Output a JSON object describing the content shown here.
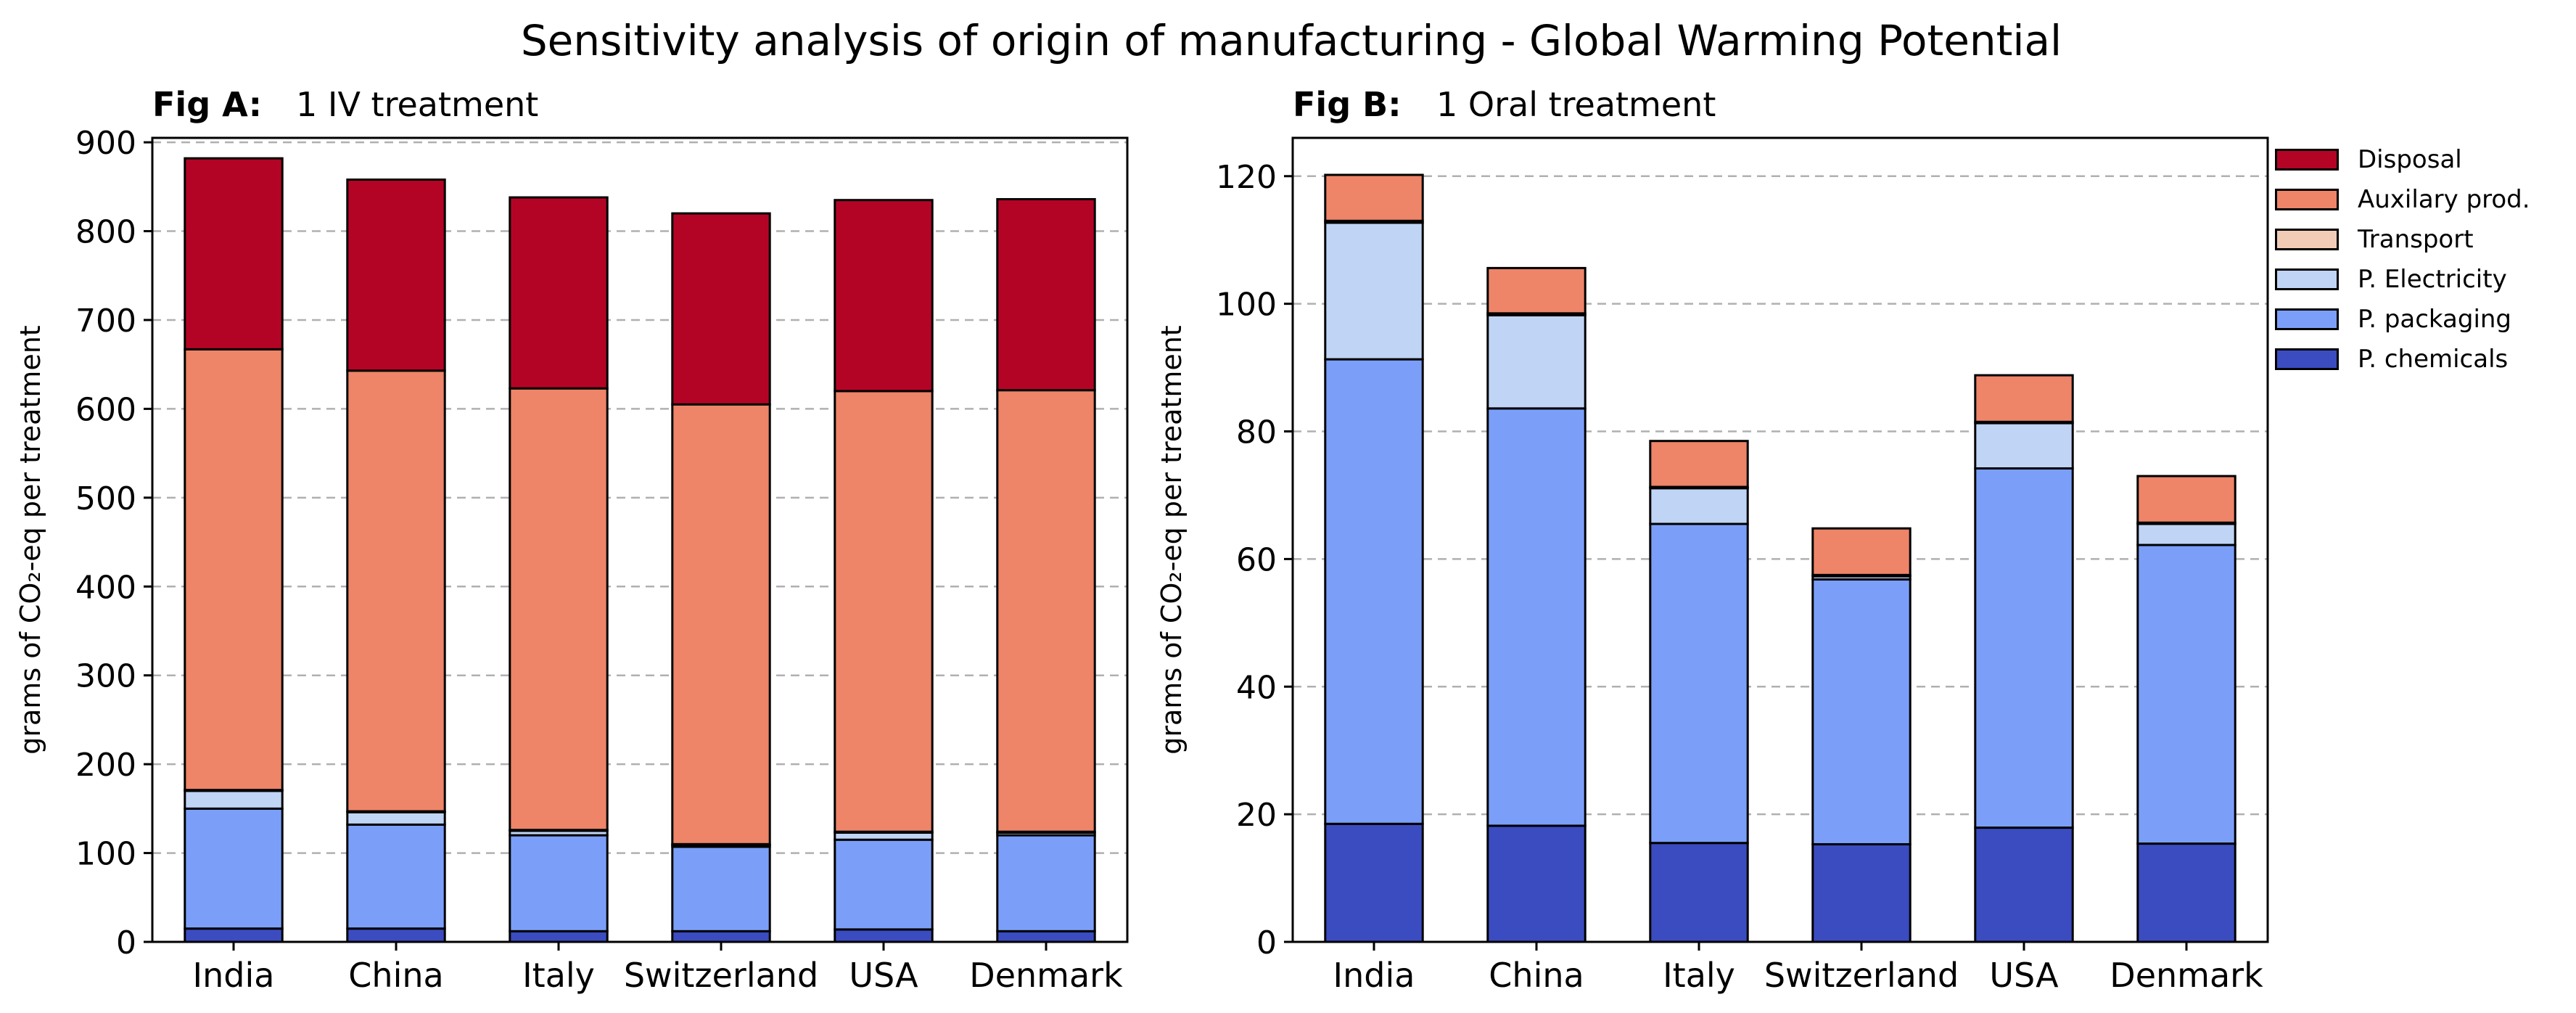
{
  "chart_data": {
    "title": "Sensitivity analysis of origin of manufacturing - Global Warming Potential",
    "type": "bar",
    "stacked": true,
    "categories": [
      "India",
      "China",
      "Italy",
      "Switzerland",
      "USA",
      "Denmark"
    ],
    "legend": {
      "placement": "outside right",
      "entries": [
        "Disposal",
        "Auxilary prod.",
        "Transport",
        "P. Electricity",
        "P. packaging",
        "P. chemicals"
      ]
    },
    "colors": {
      "P. chemicals": "#3b4cc0",
      "P. packaging": "#7b9ff9",
      "P. Electricity": "#c0d4f5",
      "Transport": "#f2cbb7",
      "Auxilary prod.": "#ee8468",
      "Disposal": "#b40426"
    },
    "grid": "horizontal dashed",
    "panels": [
      {
        "fig_label": "Fig A:",
        "subtitle": "1 IV treatment",
        "ylabel": "grams of CO₂-eq per treatment",
        "ylim": [
          0,
          905
        ],
        "yticks": [
          0,
          100,
          200,
          300,
          400,
          500,
          600,
          700,
          800,
          900
        ],
        "series": [
          {
            "name": "P. chemicals",
            "values": [
              15,
              15,
              12,
              12,
              14,
              12
            ]
          },
          {
            "name": "P. packaging",
            "values": [
              135,
              117,
              108,
              95,
              101,
              108
            ]
          },
          {
            "name": "P. Electricity",
            "values": [
              20,
              14,
              5,
              2,
              8,
              3
            ]
          },
          {
            "name": "Transport",
            "values": [
              1,
              1,
              1,
              1,
              1,
              1
            ]
          },
          {
            "name": "Auxilary prod.",
            "values": [
              496,
              496,
              497,
              495,
              496,
              497
            ]
          },
          {
            "name": "Disposal",
            "values": [
              215,
              215,
              215,
              215,
              215,
              215
            ]
          }
        ]
      },
      {
        "fig_label": "Fig B:",
        "subtitle": "1 Oral treatment",
        "ylabel": "grams of CO₂-eq per treatment",
        "ylim": [
          0,
          126
        ],
        "yticks": [
          0,
          20,
          40,
          60,
          80,
          100,
          120
        ],
        "series": [
          {
            "name": "P. chemicals",
            "values": [
              18.5,
              18.2,
              15.5,
              15.3,
              17.9,
              15.4
            ]
          },
          {
            "name": "P. packaging",
            "values": [
              72.8,
              65.4,
              50,
              41.5,
              56.3,
              46.8
            ]
          },
          {
            "name": "P. Electricity",
            "values": [
              21.4,
              14.6,
              5.6,
              0.5,
              7.1,
              3.3
            ]
          },
          {
            "name": "Transport",
            "values": [
              0.3,
              0.3,
              0.2,
              0.2,
              0.2,
              0.2
            ]
          },
          {
            "name": "Auxilary prod.",
            "values": [
              7.2,
              7.1,
              7.2,
              7.3,
              7.3,
              7.3
            ]
          },
          {
            "name": "Disposal",
            "values": [
              0,
              0,
              0,
              0,
              0,
              0
            ]
          }
        ]
      }
    ]
  }
}
